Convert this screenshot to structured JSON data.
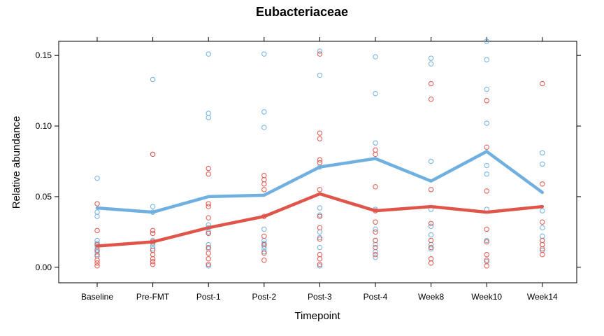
{
  "chart_data": {
    "type": "scatter",
    "title": "Eubacteriaceae",
    "xlabel": "Timepoint",
    "ylabel": "Relative abundance",
    "categories": [
      "Baseline",
      "Pre-FMT",
      "Post-1",
      "Post-2",
      "Post-3",
      "Post-4",
      "Week8",
      "Week10",
      "Week14"
    ],
    "ylim": [
      -0.011,
      0.16
    ],
    "yticks": [
      0.0,
      0.05,
      0.1,
      0.15
    ],
    "ytick_labels": [
      "0.00",
      "0.05",
      "0.10",
      "0.15"
    ],
    "grid": false,
    "series": [
      {
        "name": "blue",
        "color": "#6fb0e0",
        "mean_line": [
          0.042,
          0.039,
          0.05,
          0.051,
          0.071,
          0.077,
          0.061,
          0.082,
          0.053
        ],
        "points": [
          [
            0.063,
            0.039,
            0.036,
            0.019,
            0.017,
            0.015,
            0.013,
            0.011,
            0.009
          ],
          [
            0.133,
            0.08,
            0.043,
            0.039,
            0.019,
            0.017,
            0.015,
            0.013
          ],
          [
            0.151,
            0.109,
            0.106,
            0.03,
            0.028,
            0.025,
            0.016,
            0.013,
            0.001
          ],
          [
            0.151,
            0.11,
            0.099,
            0.027,
            0.019,
            0.017,
            0.015,
            0.013,
            0.011
          ],
          [
            0.153,
            0.136,
            0.071,
            0.042,
            0.037,
            0.025,
            0.021,
            0.014,
            0.001
          ],
          [
            0.149,
            0.123,
            0.088,
            0.041,
            0.027,
            0.019,
            0.016,
            0.011,
            0.007
          ],
          [
            0.148,
            0.144,
            0.075,
            0.041,
            0.029,
            0.023,
            0.016,
            0.013
          ],
          [
            0.16,
            0.147,
            0.126,
            0.102,
            0.072,
            0.066,
            0.041,
            0.019,
            0.004
          ],
          [
            0.081,
            0.073,
            0.04,
            0.028,
            0.022,
            0.019,
            0.016,
            0.012
          ]
        ]
      },
      {
        "name": "red",
        "color": "#e0554a",
        "mean_line": [
          0.015,
          0.018,
          0.028,
          0.036,
          0.052,
          0.04,
          0.043,
          0.039,
          0.043
        ],
        "points": [
          [
            0.045,
            0.026,
            0.016,
            0.012,
            0.008,
            0.005,
            0.003,
            0.001
          ],
          [
            0.08,
            0.026,
            0.024,
            0.018,
            0.012,
            0.009,
            0.006,
            0.004,
            0.002
          ],
          [
            0.07,
            0.066,
            0.045,
            0.043,
            0.035,
            0.024,
            0.014,
            0.01,
            0.006,
            0.002
          ],
          [
            0.065,
            0.062,
            0.059,
            0.055,
            0.036,
            0.022,
            0.016,
            0.01,
            0.005
          ],
          [
            0.151,
            0.095,
            0.091,
            0.076,
            0.074,
            0.055,
            0.036,
            0.028,
            0.02,
            0.009,
            0.006,
            0.002
          ],
          [
            0.083,
            0.08,
            0.057,
            0.04,
            0.032,
            0.025,
            0.019,
            0.014,
            0.009
          ],
          [
            0.13,
            0.119,
            0.055,
            0.031,
            0.019,
            0.014,
            0.006,
            0.003
          ],
          [
            0.118,
            0.085,
            0.054,
            0.027,
            0.018,
            0.009,
            0.005,
            0.001
          ],
          [
            0.13,
            0.059,
            0.032,
            0.019,
            0.016,
            0.013,
            0.009
          ]
        ]
      }
    ]
  }
}
